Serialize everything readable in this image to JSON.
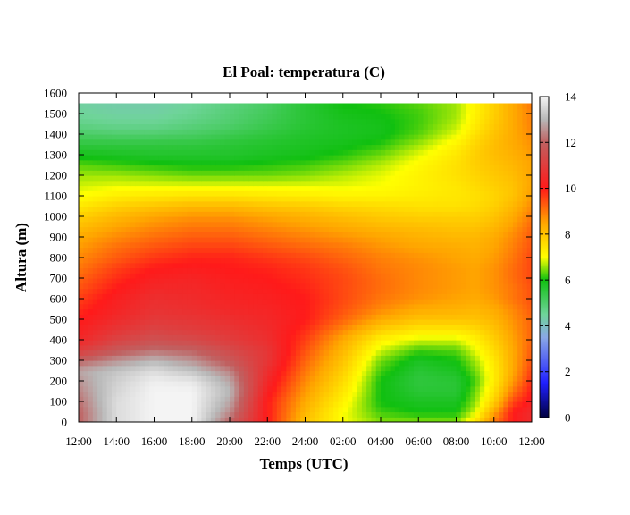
{
  "chart_data": {
    "type": "heatmap",
    "title": "El Poal: temperatura (C)",
    "xlabel": "Temps (UTC)",
    "ylabel": "Altura (m)",
    "x_ticks": [
      "12:00",
      "14:00",
      "16:00",
      "18:00",
      "20:00",
      "22:00",
      "24:00",
      "02:00",
      "04:00",
      "06:00",
      "08:00",
      "10:00",
      "12:00"
    ],
    "x_hours": [
      0,
      24
    ],
    "y_ticks": [
      0,
      100,
      200,
      300,
      400,
      500,
      600,
      700,
      800,
      900,
      1000,
      1100,
      1200,
      1300,
      1400,
      1500,
      1600
    ],
    "ylim": [
      0,
      1600
    ],
    "data_top": 1550,
    "colorbar": {
      "ticks": [
        0,
        2,
        4,
        6,
        8,
        10,
        12,
        14
      ],
      "range": [
        0,
        14
      ],
      "stops": [
        {
          "value": 0,
          "color": "#000040"
        },
        {
          "value": 1.5,
          "color": "#1f1fff"
        },
        {
          "value": 3.5,
          "color": "#8aa8e6"
        },
        {
          "value": 4.5,
          "color": "#6fd49a"
        },
        {
          "value": 6,
          "color": "#10c010"
        },
        {
          "value": 7,
          "color": "#ffff00"
        },
        {
          "value": 8.5,
          "color": "#ffa500"
        },
        {
          "value": 10,
          "color": "#ff1a1a"
        },
        {
          "value": 12,
          "color": "#c06060"
        },
        {
          "value": 13,
          "color": "#b8b8b8"
        },
        {
          "value": 14,
          "color": "#f4f4f4"
        }
      ]
    },
    "heights_m": [
      0,
      50,
      100,
      150,
      200,
      250,
      300,
      350,
      400,
      450,
      500,
      550,
      600,
      650,
      700,
      750,
      800,
      850,
      900,
      950,
      1000,
      1050,
      1100,
      1150,
      1200,
      1250,
      1300,
      1350,
      1400,
      1450,
      1500,
      1550
    ],
    "times_h": [
      0,
      2,
      4,
      6,
      8,
      10,
      12,
      14,
      16,
      18,
      20,
      21,
      22,
      23,
      24
    ],
    "temperature_c": [
      [
        12.0,
        13.6,
        14.0,
        14.0,
        12.0,
        10.0,
        8.0,
        7.0,
        6.5,
        6.5,
        6.5,
        7.5,
        9.0,
        10.0,
        10.5
      ],
      [
        12.0,
        13.6,
        14.0,
        14.0,
        12.5,
        10.0,
        8.2,
        7.0,
        6.2,
        6.0,
        6.0,
        6.8,
        8.5,
        10.0,
        10.5
      ],
      [
        12.2,
        13.6,
        14.0,
        14.0,
        12.8,
        10.0,
        8.4,
        7.2,
        6.0,
        5.8,
        5.8,
        6.5,
        7.8,
        9.5,
        10.2
      ],
      [
        12.4,
        13.5,
        14.0,
        14.0,
        13.0,
        10.2,
        8.6,
        7.4,
        6.0,
        5.6,
        5.6,
        6.4,
        7.5,
        9.0,
        10.0
      ],
      [
        12.6,
        13.4,
        13.9,
        13.8,
        12.8,
        10.4,
        8.8,
        7.6,
        6.0,
        5.5,
        5.6,
        6.2,
        7.3,
        8.6,
        9.8
      ],
      [
        12.8,
        13.2,
        13.6,
        13.2,
        12.4,
        10.6,
        9.0,
        7.8,
        6.2,
        5.6,
        5.8,
        6.4,
        7.3,
        8.4,
        9.6
      ],
      [
        12.0,
        12.6,
        13.0,
        12.6,
        11.8,
        10.8,
        9.2,
        8.0,
        6.4,
        5.8,
        6.0,
        6.6,
        7.4,
        8.4,
        9.4
      ],
      [
        11.0,
        11.8,
        12.2,
        12.0,
        11.4,
        10.8,
        9.4,
        8.2,
        6.8,
        6.2,
        6.3,
        6.9,
        7.6,
        8.4,
        9.3
      ],
      [
        10.4,
        11.2,
        11.6,
        11.4,
        11.0,
        10.6,
        9.6,
        8.4,
        7.2,
        6.8,
        6.8,
        7.2,
        7.8,
        8.5,
        9.2
      ],
      [
        10.2,
        10.8,
        11.2,
        11.0,
        10.8,
        10.5,
        9.8,
        8.8,
        7.8,
        7.4,
        7.4,
        7.6,
        8.0,
        8.6,
        9.2
      ],
      [
        10.0,
        10.5,
        10.9,
        10.8,
        10.6,
        10.4,
        10.0,
        9.2,
        8.4,
        8.0,
        8.0,
        8.0,
        8.2,
        8.7,
        9.2
      ],
      [
        9.8,
        10.3,
        10.7,
        10.6,
        10.4,
        10.3,
        10.0,
        9.4,
        8.8,
        8.4,
        8.3,
        8.2,
        8.4,
        8.8,
        9.3
      ],
      [
        9.6,
        10.2,
        10.6,
        10.5,
        10.3,
        10.2,
        10.0,
        9.5,
        9.0,
        8.7,
        8.5,
        8.4,
        8.6,
        9.0,
        9.4
      ],
      [
        9.4,
        10.0,
        10.4,
        10.4,
        10.2,
        10.1,
        9.9,
        9.5,
        9.1,
        8.8,
        8.6,
        8.5,
        8.7,
        9.0,
        9.4
      ],
      [
        9.2,
        9.8,
        10.2,
        10.3,
        10.1,
        10.0,
        9.8,
        9.5,
        9.1,
        8.8,
        8.6,
        8.5,
        8.7,
        9.1,
        9.5
      ],
      [
        9.0,
        9.6,
        10.0,
        10.1,
        10.0,
        9.9,
        9.7,
        9.4,
        9.0,
        8.8,
        8.6,
        8.5,
        8.7,
        9.1,
        9.5
      ],
      [
        8.8,
        9.3,
        9.7,
        9.9,
        9.9,
        9.7,
        9.5,
        9.2,
        8.9,
        8.7,
        8.5,
        8.4,
        8.6,
        9.0,
        9.5
      ],
      [
        8.6,
        9.1,
        9.4,
        9.6,
        9.6,
        9.4,
        9.2,
        9.0,
        8.7,
        8.5,
        8.4,
        8.3,
        8.5,
        8.9,
        9.4
      ],
      [
        8.4,
        8.8,
        9.1,
        9.3,
        9.3,
        9.1,
        8.9,
        8.7,
        8.5,
        8.3,
        8.2,
        8.2,
        8.4,
        8.8,
        9.3
      ],
      [
        8.1,
        8.5,
        8.8,
        9.0,
        9.0,
        8.8,
        8.6,
        8.4,
        8.2,
        8.1,
        8.0,
        8.0,
        8.2,
        8.6,
        9.2
      ],
      [
        7.8,
        8.2,
        8.5,
        8.7,
        8.7,
        8.5,
        8.3,
        8.1,
        7.9,
        7.8,
        7.8,
        7.8,
        8.0,
        8.4,
        9.0
      ],
      [
        7.4,
        7.8,
        8.0,
        8.2,
        8.2,
        8.0,
        7.9,
        7.7,
        7.6,
        7.5,
        7.5,
        7.6,
        7.8,
        8.2,
        8.8
      ],
      [
        7.0,
        7.3,
        7.4,
        7.5,
        7.5,
        7.4,
        7.3,
        7.2,
        7.2,
        7.3,
        7.4,
        7.5,
        7.7,
        8.0,
        8.6
      ],
      [
        6.8,
        6.9,
        6.9,
        6.9,
        6.9,
        6.9,
        6.9,
        6.9,
        7.0,
        7.2,
        7.4,
        7.6,
        7.8,
        8.0,
        8.5
      ],
      [
        6.6,
        6.6,
        6.5,
        6.4,
        6.4,
        6.4,
        6.5,
        6.7,
        6.9,
        7.2,
        7.5,
        7.7,
        7.9,
        8.1,
        8.5
      ],
      [
        6.3,
        6.2,
        6.1,
        6.0,
        6.0,
        6.1,
        6.2,
        6.4,
        6.7,
        7.1,
        7.5,
        7.8,
        8.0,
        8.2,
        8.5
      ],
      [
        5.9,
        5.8,
        5.7,
        5.7,
        5.7,
        5.8,
        5.9,
        6.1,
        6.4,
        6.9,
        7.4,
        7.8,
        8.1,
        8.3,
        8.6
      ],
      [
        5.5,
        5.5,
        5.5,
        5.5,
        5.6,
        5.7,
        5.8,
        5.9,
        6.1,
        6.6,
        7.2,
        7.7,
        8.1,
        8.4,
        8.7
      ],
      [
        5.1,
        5.0,
        5.0,
        5.1,
        5.3,
        5.5,
        5.7,
        5.8,
        5.9,
        6.3,
        6.9,
        7.5,
        8.0,
        8.4,
        8.8
      ],
      [
        4.7,
        4.6,
        4.6,
        4.8,
        5.0,
        5.3,
        5.6,
        5.8,
        5.9,
        6.2,
        6.7,
        7.3,
        7.9,
        8.4,
        8.9
      ],
      [
        4.5,
        4.4,
        4.4,
        4.6,
        4.9,
        5.2,
        5.6,
        5.9,
        6.0,
        6.2,
        6.6,
        7.2,
        7.8,
        8.4,
        8.9
      ],
      [
        4.4,
        4.3,
        4.3,
        4.5,
        4.8,
        5.1,
        5.6,
        6.0,
        6.1,
        6.3,
        6.6,
        7.2,
        7.8,
        8.4,
        9.0
      ]
    ]
  }
}
